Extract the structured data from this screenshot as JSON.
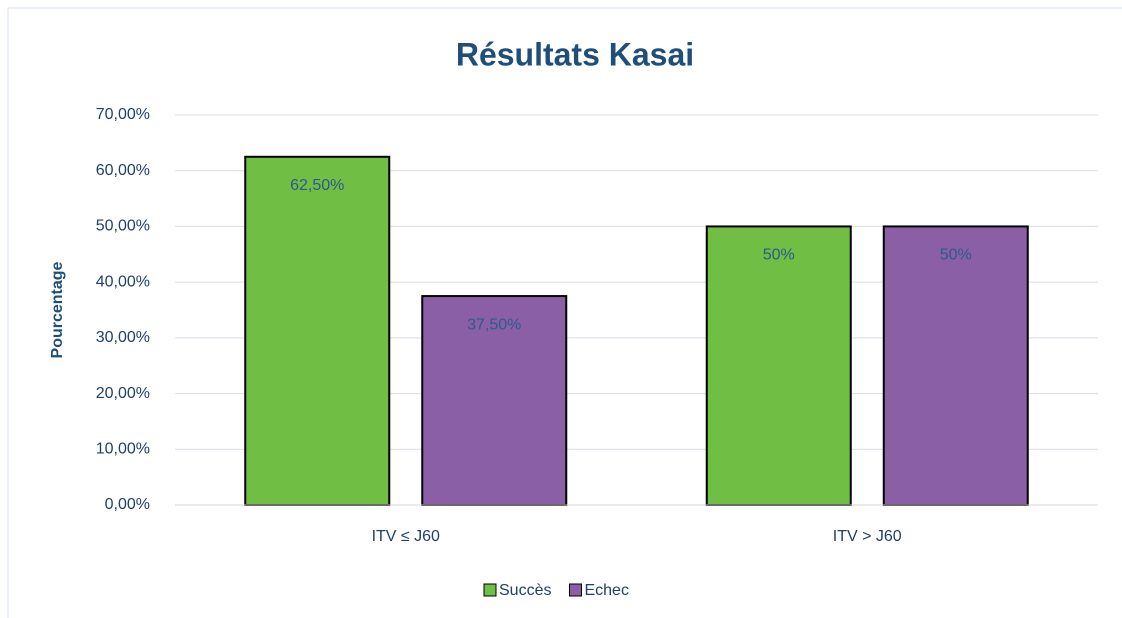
{
  "chart_data": {
    "type": "bar",
    "title": "Résultats Kasai",
    "y_label": "Pourcentage",
    "categories": [
      "ITV ≤ J60",
      "ITV > J60"
    ],
    "series": [
      {
        "name": "Succès",
        "color": "#70bf44",
        "values": [
          62.5,
          50
        ],
        "value_labels": [
          "62,50%",
          "50%"
        ]
      },
      {
        "name": "Echec",
        "color": "#8a5fa6",
        "values": [
          37.5,
          50
        ],
        "value_labels": [
          "37,50%",
          "50%"
        ]
      }
    ],
    "ylim": [
      0,
      70
    ],
    "yticks": [
      {
        "value": 0,
        "label": "0,00%"
      },
      {
        "value": 10,
        "label": "10,00%"
      },
      {
        "value": 20,
        "label": "20,00%"
      },
      {
        "value": 30,
        "label": "30,00%"
      },
      {
        "value": 40,
        "label": "40,00%"
      },
      {
        "value": 50,
        "label": "50,00%"
      },
      {
        "value": 60,
        "label": "60,00%"
      },
      {
        "value": 70,
        "label": "70,00%"
      }
    ],
    "grid": true,
    "legend": "bottom"
  }
}
